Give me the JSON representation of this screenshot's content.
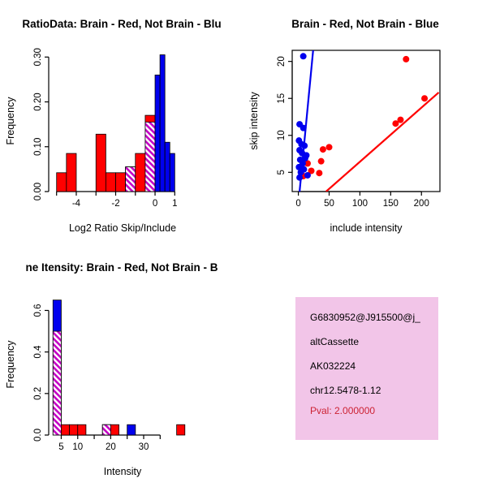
{
  "figure": {
    "background": "#FFFFFF"
  },
  "chart_data": [
    {
      "type": "bar",
      "panel": "top-left",
      "title": "RatioData: Brain - Red, Not Brain - Blu",
      "xlabel": "Log2 Ratio Skip/Include",
      "ylabel": "Frequency",
      "xlim": [
        -5.4,
        2.1
      ],
      "ylim": [
        0,
        0.315
      ],
      "xtick_values": [
        -5,
        -4,
        -3,
        -2,
        -1,
        0,
        1
      ],
      "xtick_labels": [
        "",
        "-4",
        "",
        "-2",
        "",
        "0",
        "1"
      ],
      "ytick_values": [
        0,
        0.1,
        0.2,
        0.3
      ],
      "ytick_labels": [
        "0.00",
        "0.10",
        "0.20",
        "0.30"
      ],
      "colors": {
        "red": "#FF0000",
        "blue": "#0000EE",
        "overlap_hatch": "#C400C4"
      },
      "bars": [
        {
          "x": -5.0,
          "w": 0.5,
          "red": 0.042,
          "blue": 0
        },
        {
          "x": -4.5,
          "w": 0.5,
          "red": 0.085,
          "blue": 0
        },
        {
          "x": -3.0,
          "w": 0.5,
          "red": 0.128,
          "blue": 0
        },
        {
          "x": -2.5,
          "w": 0.5,
          "red": 0.042,
          "blue": 0
        },
        {
          "x": -2.0,
          "w": 0.5,
          "red": 0.042,
          "blue": 0
        },
        {
          "x": -1.5,
          "w": 0.5,
          "red": 0.055,
          "blue": 0.055
        },
        {
          "x": -1.0,
          "w": 0.5,
          "red": 0.085,
          "blue": 0
        },
        {
          "x": -0.5,
          "w": 0.5,
          "red": 0.17,
          "blue": 0.155
        },
        {
          "x": 0.0,
          "w": 0.25,
          "red": 0,
          "blue": 0.26
        },
        {
          "x": 0.25,
          "w": 0.25,
          "red": 0,
          "blue": 0.305
        },
        {
          "x": 0.5,
          "w": 0.25,
          "red": 0,
          "blue": 0.11
        },
        {
          "x": 0.75,
          "w": 0.25,
          "red": 0,
          "blue": 0.085
        }
      ]
    },
    {
      "type": "scatter",
      "panel": "top-right",
      "title": "Brain - Red, Not Brain - Blue",
      "xlabel": "include intensity",
      "ylabel": "skip intensity",
      "xlim": [
        -10,
        230
      ],
      "ylim": [
        2.4,
        21.5
      ],
      "xtick_values": [
        0,
        50,
        100,
        150,
        200
      ],
      "xtick_labels": [
        "0",
        "50",
        "100",
        "150",
        "200"
      ],
      "ytick_values": [
        5,
        10,
        15,
        20
      ],
      "ytick_labels": [
        "5",
        "10",
        "15",
        "20"
      ],
      "series": [
        {
          "name": "Brain",
          "color": "#FF0000",
          "points": [
            [
              175,
              20.3
            ],
            [
              205,
              15.0
            ],
            [
              166,
              12.1
            ],
            [
              158,
              11.6
            ],
            [
              50,
              8.4
            ],
            [
              40,
              8.1
            ],
            [
              37,
              6.5
            ],
            [
              15,
              6.2
            ],
            [
              6,
              5.4
            ],
            [
              21,
              5.2
            ],
            [
              34,
              4.9
            ],
            [
              8,
              4.5
            ]
          ]
        },
        {
          "name": "Not Brain",
          "color": "#0000EE",
          "points": [
            [
              8,
              20.7
            ],
            [
              2,
              11.5
            ],
            [
              8,
              11.0
            ],
            [
              1,
              9.3
            ],
            [
              5,
              8.8
            ],
            [
              10,
              8.6
            ],
            [
              2,
              8.0
            ],
            [
              6,
              7.6
            ],
            [
              13,
              7.3
            ],
            [
              3,
              6.7
            ],
            [
              11,
              6.9
            ],
            [
              7,
              6.2
            ],
            [
              1,
              5.7
            ],
            [
              9,
              5.4
            ],
            [
              4,
              5.0
            ],
            [
              15,
              4.6
            ],
            [
              2,
              4.3
            ]
          ]
        }
      ],
      "fit_lines": [
        {
          "color": "#0000EE",
          "from": [
            2,
            2.4
          ],
          "to": [
            24,
            21.5
          ]
        },
        {
          "color": "#FF0000",
          "from": [
            45,
            2.4
          ],
          "to": [
            228,
            15.8
          ]
        }
      ]
    },
    {
      "type": "bar",
      "panel": "bottom-left",
      "title": "ne Itensity: Brain - Red, Not Brain - B",
      "xlabel": "Intensity",
      "ylabel": "Frequency",
      "xlim": [
        1.2,
        46
      ],
      "ylim": [
        0,
        0.68
      ],
      "xtick_values": [
        5,
        10,
        15,
        20,
        25,
        30,
        35
      ],
      "xtick_labels": [
        "5",
        "10",
        "",
        "20",
        "",
        "30",
        ""
      ],
      "ytick_values": [
        0,
        0.2,
        0.4,
        0.6
      ],
      "ytick_labels": [
        "0.0",
        "0.2",
        "0.4",
        "0.6"
      ],
      "colors": {
        "red": "#FF0000",
        "blue": "#0000EE",
        "overlap_hatch": "#C400C4"
      },
      "bars": [
        {
          "x": 2.5,
          "w": 2.5,
          "red": 0.5,
          "blue": 0.65
        },
        {
          "x": 5.0,
          "w": 2.5,
          "red": 0.05,
          "blue": 0
        },
        {
          "x": 7.5,
          "w": 2.5,
          "red": 0.05,
          "blue": 0
        },
        {
          "x": 10.0,
          "w": 2.5,
          "red": 0.05,
          "blue": 0
        },
        {
          "x": 17.5,
          "w": 2.5,
          "red": 0.05,
          "blue": 0.05
        },
        {
          "x": 20.0,
          "w": 2.5,
          "red": 0.05,
          "blue": 0
        },
        {
          "x": 25.0,
          "w": 2.5,
          "red": 0,
          "blue": 0.05
        },
        {
          "x": 40.0,
          "w": 2.5,
          "red": 0.05,
          "blue": 0
        }
      ]
    }
  ],
  "info_box": {
    "background": "#F2C5E8",
    "pval_color": "#CC2233",
    "lines": [
      "G6830952@J915500@j_",
      "altCassette",
      "AK032224",
      "chr12.5478-1.12",
      "Pval: 2.000000"
    ]
  }
}
